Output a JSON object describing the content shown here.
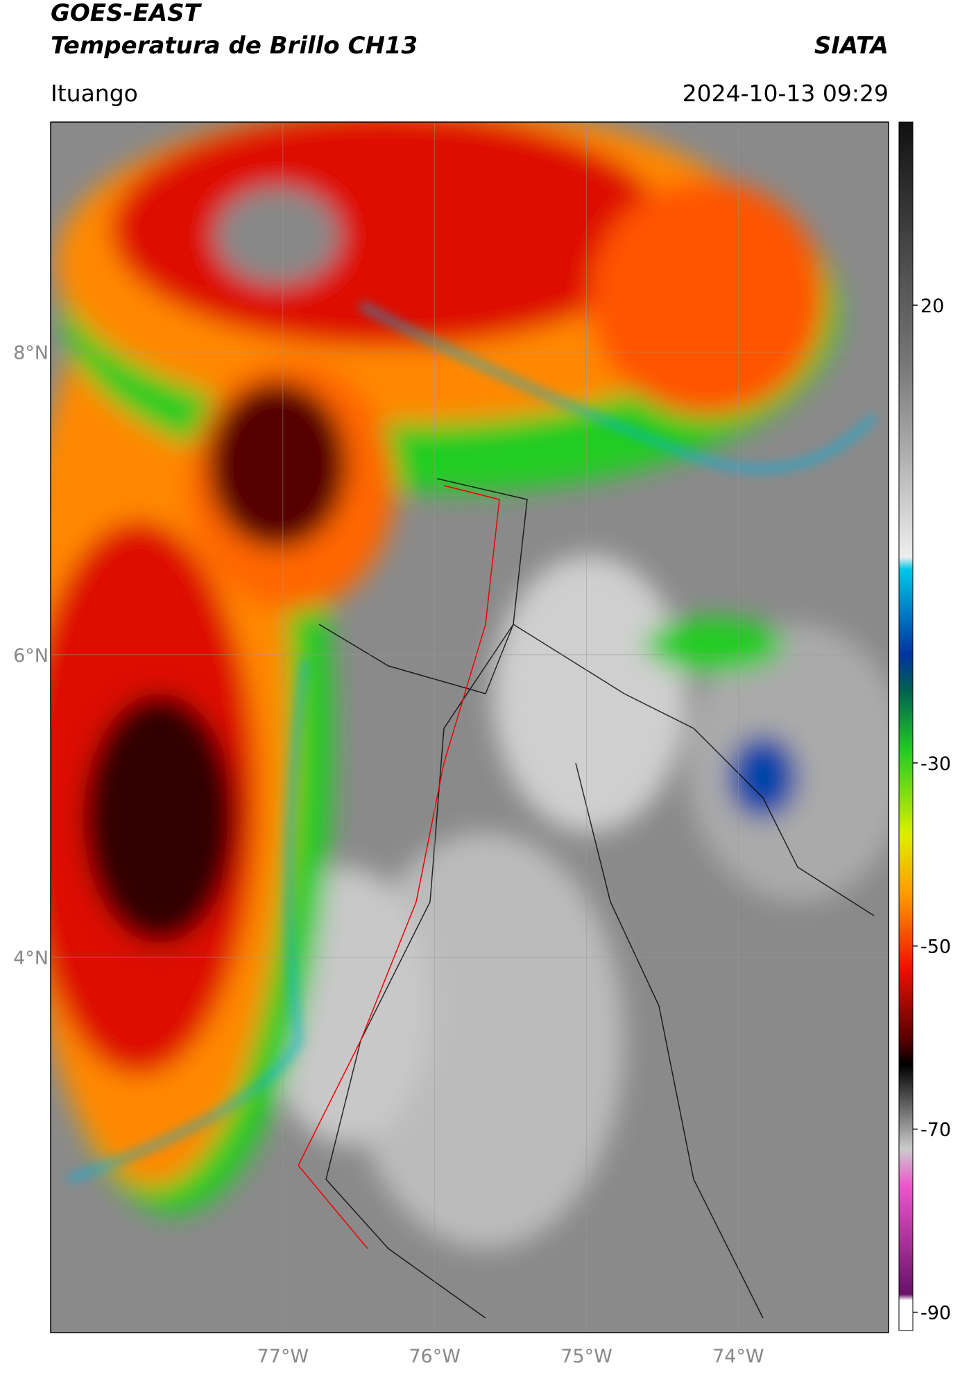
{
  "header": {
    "title": "GOES-EAST",
    "subtitle": "Temperatura de Brillo CH13",
    "agency": "SIATA",
    "location": "Ituango",
    "datetime": "2024-10-13 09:29"
  },
  "map": {
    "xlim": [
      -78.53,
      -73.01
    ],
    "ylim": [
      1.52,
      9.52
    ],
    "xticks": [
      {
        "value": -77,
        "label": "77°W"
      },
      {
        "value": -76,
        "label": "76°W"
      },
      {
        "value": -75,
        "label": "75°W"
      },
      {
        "value": -74,
        "label": "74°W"
      }
    ],
    "yticks": [
      {
        "value": 8,
        "label": "8°N"
      },
      {
        "value": 6,
        "label": "6°N"
      },
      {
        "value": 4,
        "label": "4°N"
      }
    ]
  },
  "colorbar": {
    "range": [
      -92,
      40
    ],
    "ticks": [
      20,
      -30,
      -50,
      -70,
      -90
    ]
  }
}
